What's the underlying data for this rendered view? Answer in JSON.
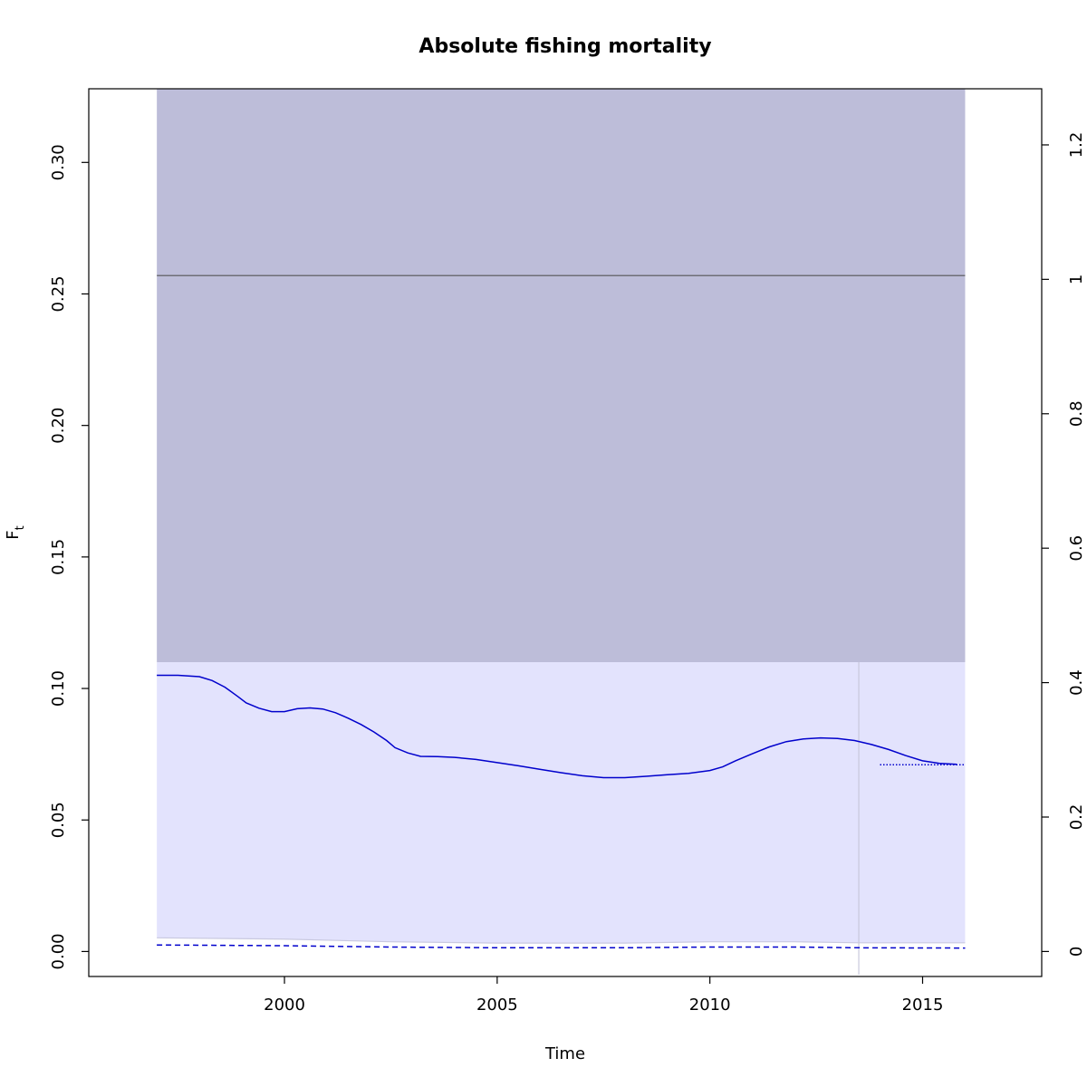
{
  "chart_data": {
    "type": "line",
    "title": "Absolute fishing mortality",
    "xlabel": "Time",
    "ylabel": "F",
    "ylabel_subscript": "t",
    "xlim": [
      1995.4,
      2017.8
    ],
    "ylim": [
      -0.0095,
      0.328
    ],
    "y2lim": [
      -0.0372,
      1.2835
    ],
    "x_ticks": [
      2000,
      2005,
      2010,
      2015
    ],
    "x_tick_labels": [
      "2000",
      "2005",
      "2010",
      "2015"
    ],
    "y_ticks": [
      0.0,
      0.05,
      0.1,
      0.15,
      0.2,
      0.25,
      0.3
    ],
    "y_tick_labels": [
      "0.00",
      "0.05",
      "0.10",
      "0.15",
      "0.20",
      "0.25",
      "0.30"
    ],
    "y2_ticks": [
      0,
      0.2,
      0.4,
      0.6,
      0.8,
      1.0,
      1.2
    ],
    "y2_tick_labels": [
      "0",
      "0.2",
      "0.4",
      "0.6",
      "0.8",
      "1",
      "1.2"
    ],
    "grid": false,
    "reference_band": {
      "x": [
        1997,
        2016
      ],
      "y": [
        0.11,
        0.328
      ],
      "color": "#bdbdd9"
    },
    "ci_band": {
      "x": [
        1997,
        2016
      ],
      "upper": 0.11,
      "lower": [
        [
          1997,
          0.0052
        ],
        [
          2000,
          0.0047
        ],
        [
          2002.5,
          0.0037
        ],
        [
          2005,
          0.0032
        ],
        [
          2008,
          0.0032
        ],
        [
          2010,
          0.0037
        ],
        [
          2012,
          0.0037
        ],
        [
          2013.5,
          0.0033
        ],
        [
          2016,
          0.0033
        ]
      ],
      "color": "#e3e3fd"
    },
    "reference_line": {
      "x": [
        1997,
        2016
      ],
      "y": 0.257,
      "color": "#555555"
    },
    "last_observation": {
      "x": 2013.5,
      "color": "#c8c8dc"
    },
    "series": [
      {
        "style": "solid",
        "color": "#0000cc",
        "points": [
          [
            1997,
            0.105
          ],
          [
            1997.5,
            0.105
          ],
          [
            1998,
            0.1045
          ],
          [
            1998.3,
            0.103
          ],
          [
            1998.6,
            0.1005
          ],
          [
            1998.9,
            0.097
          ],
          [
            1999.1,
            0.0945
          ],
          [
            1999.4,
            0.0925
          ],
          [
            1999.7,
            0.0912
          ],
          [
            2000,
            0.0912
          ],
          [
            2000.3,
            0.0923
          ],
          [
            2000.6,
            0.0926
          ],
          [
            2000.9,
            0.0922
          ],
          [
            2001.2,
            0.0908
          ],
          [
            2001.5,
            0.0887
          ],
          [
            2001.8,
            0.0863
          ],
          [
            2002.1,
            0.0835
          ],
          [
            2002.4,
            0.0802
          ],
          [
            2002.6,
            0.0775
          ],
          [
            2002.9,
            0.0755
          ],
          [
            2003.2,
            0.0742
          ],
          [
            2003.6,
            0.0741
          ],
          [
            2004,
            0.0738
          ],
          [
            2004.5,
            0.073
          ],
          [
            2005,
            0.0718
          ],
          [
            2005.5,
            0.0706
          ],
          [
            2006,
            0.0693
          ],
          [
            2006.5,
            0.068
          ],
          [
            2007,
            0.0668
          ],
          [
            2007.5,
            0.0661
          ],
          [
            2008,
            0.0661
          ],
          [
            2008.5,
            0.0666
          ],
          [
            2009,
            0.0672
          ],
          [
            2009.5,
            0.0677
          ],
          [
            2010,
            0.0688
          ],
          [
            2010.3,
            0.0702
          ],
          [
            2010.6,
            0.0725
          ],
          [
            2011,
            0.0752
          ],
          [
            2011.4,
            0.0778
          ],
          [
            2011.8,
            0.0798
          ],
          [
            2012.2,
            0.0808
          ],
          [
            2012.6,
            0.0812
          ],
          [
            2013,
            0.081
          ],
          [
            2013.4,
            0.0802
          ],
          [
            2013.8,
            0.0787
          ],
          [
            2014.2,
            0.0768
          ],
          [
            2014.6,
            0.0745
          ],
          [
            2015,
            0.0725
          ],
          [
            2015.4,
            0.0715
          ],
          [
            2015.8,
            0.0712
          ]
        ]
      },
      {
        "style": "dotted",
        "color": "#0000cc",
        "points": [
          [
            2014,
            0.071
          ],
          [
            2016,
            0.071
          ]
        ]
      },
      {
        "style": "dashed",
        "color": "#0000cc",
        "points": [
          [
            1997,
            0.0025
          ],
          [
            2000,
            0.0022
          ],
          [
            2002.5,
            0.0017
          ],
          [
            2005,
            0.0014
          ],
          [
            2008,
            0.0014
          ],
          [
            2010,
            0.0017
          ],
          [
            2012,
            0.0017
          ],
          [
            2013.5,
            0.0014
          ],
          [
            2016,
            0.0013
          ]
        ]
      }
    ]
  }
}
